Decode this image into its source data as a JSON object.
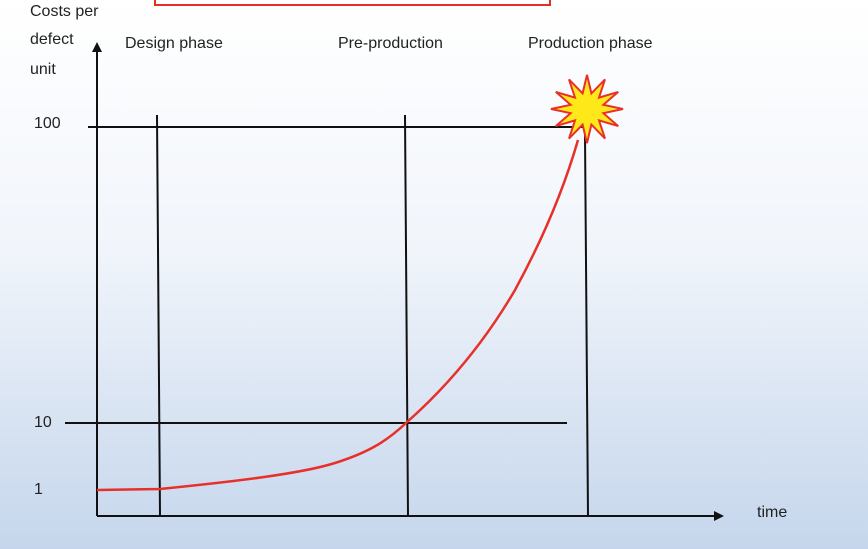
{
  "y_axis_label": [
    "Costs  per",
    "defect",
    "unit"
  ],
  "y_ticks": [
    "100",
    "10",
    "1"
  ],
  "phases": [
    "Design phase",
    "Pre-production",
    "Production phase"
  ],
  "x_axis_label": "time"
}
